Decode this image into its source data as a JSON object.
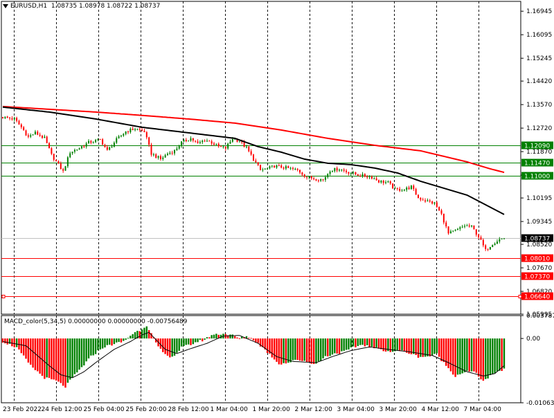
{
  "main_header": {
    "symbol": "EURUSD,H1",
    "open": "1.08735",
    "high": "1.08978",
    "low": "1.08722",
    "close": "1.08737"
  },
  "macd_header": {
    "name": "MACD_color(5,34,5)",
    "v1": "0.00000000",
    "v2": "0.00000000",
    "v3": "-0.00756489"
  },
  "colors": {
    "bull": "#008000",
    "bear": "#ff0000",
    "ma_fast": "#000000",
    "ma_slow": "#ff0000",
    "level_green": "#008000",
    "level_red": "#ff0000",
    "grid": "#000000"
  },
  "chart_data": [
    {
      "type": "candlestick",
      "symbol": "EURUSD",
      "timeframe": "H1",
      "ylim": [
        1.05995,
        1.173
      ],
      "y_ticks": [
        "1.16945",
        "1.16095",
        "1.15245",
        "1.14420",
        "1.13570",
        "1.12720",
        "1.11870",
        "1.11020",
        "1.10195",
        "1.09345",
        "1.08520",
        "1.07670",
        "1.06820",
        "1.05995"
      ],
      "x_ticks": [
        "23 Feb 2022",
        "24 Feb 12:00",
        "25 Feb 04:00",
        "25 Feb 20:00",
        "28 Feb 12:00",
        "1 Mar 04:00",
        "1 Mar 20:00",
        "2 Mar 12:00",
        "3 Mar 04:00",
        "3 Mar 20:00",
        "4 Mar 12:00",
        "7 Mar 04:00"
      ],
      "levels": [
        {
          "label": "1.12090",
          "value": 1.1209,
          "color": "green"
        },
        {
          "label": "1.11470",
          "value": 1.1147,
          "color": "green"
        },
        {
          "label": "1.11000",
          "value": 1.11,
          "color": "green"
        },
        {
          "label": "1.08010",
          "value": 1.0801,
          "color": "red"
        },
        {
          "label": "1.07370",
          "value": 1.0737,
          "color": "red"
        },
        {
          "label": "1.06640",
          "value": 1.0664,
          "color": "red"
        }
      ],
      "current_price": {
        "label": "1.08737",
        "value": 1.08737
      },
      "close_path": [
        [
          0,
          1.1312
        ],
        [
          5,
          1.1305
        ],
        [
          8,
          1.1275
        ],
        [
          11,
          1.124
        ],
        [
          14,
          1.1255
        ],
        [
          18,
          1.1235
        ],
        [
          21,
          1.1175
        ],
        [
          26,
          1.1115
        ],
        [
          29,
          1.1185
        ],
        [
          33,
          1.12
        ],
        [
          37,
          1.122
        ],
        [
          42,
          1.123
        ],
        [
          45,
          1.119
        ],
        [
          49,
          1.123
        ],
        [
          53,
          1.126
        ],
        [
          57,
          1.127
        ],
        [
          61,
          1.126
        ],
        [
          64,
          1.118
        ],
        [
          68,
          1.116
        ],
        [
          71,
          1.118
        ],
        [
          74,
          1.119
        ],
        [
          77,
          1.122
        ],
        [
          81,
          1.1235
        ],
        [
          84,
          1.1215
        ],
        [
          87,
          1.123
        ],
        [
          90,
          1.122
        ],
        [
          93,
          1.1205
        ],
        [
          96,
          1.12
        ],
        [
          99,
          1.1235
        ],
        [
          102,
          1.1225
        ],
        [
          105,
          1.12
        ],
        [
          108,
          1.116
        ],
        [
          111,
          1.112
        ],
        [
          114,
          1.1125
        ],
        [
          117,
          1.1135
        ],
        [
          121,
          1.113
        ],
        [
          124,
          1.1125
        ],
        [
          127,
          1.112
        ],
        [
          131,
          1.1095
        ],
        [
          134,
          1.109
        ],
        [
          138,
          1.1085
        ],
        [
          141,
          1.112
        ],
        [
          145,
          1.1125
        ],
        [
          148,
          1.1115
        ],
        [
          152,
          1.1105
        ],
        [
          155,
          1.11
        ],
        [
          159,
          1.1095
        ],
        [
          162,
          1.108
        ],
        [
          166,
          1.1075
        ],
        [
          169,
          1.105
        ],
        [
          173,
          1.105
        ],
        [
          176,
          1.106
        ],
        [
          179,
          1.102
        ],
        [
          182,
          1.101
        ],
        [
          186,
          1.1
        ],
        [
          189,
          1.096
        ],
        [
          192,
          1.089
        ],
        [
          196,
          1.0905
        ],
        [
          199,
          1.092
        ],
        [
          202,
          1.0915
        ],
        [
          205,
          1.088
        ],
        [
          208,
          1.083
        ],
        [
          211,
          1.0855
        ],
        [
          214,
          1.087
        ],
        [
          216,
          1.0874
        ]
      ],
      "candle_count": 217,
      "ma_fast": [
        [
          0,
          1.1348
        ],
        [
          20,
          1.133
        ],
        [
          40,
          1.1305
        ],
        [
          60,
          1.1275
        ],
        [
          80,
          1.1255
        ],
        [
          100,
          1.1235
        ],
        [
          110,
          1.1205
        ],
        [
          120,
          1.1185
        ],
        [
          130,
          1.116
        ],
        [
          140,
          1.1145
        ],
        [
          150,
          1.114
        ],
        [
          160,
          1.1128
        ],
        [
          170,
          1.111
        ],
        [
          180,
          1.108
        ],
        [
          190,
          1.1055
        ],
        [
          200,
          1.103
        ],
        [
          208,
          1.0995
        ],
        [
          216,
          1.096
        ]
      ],
      "ma_slow": [
        [
          0,
          1.135
        ],
        [
          20,
          1.134
        ],
        [
          40,
          1.133
        ],
        [
          60,
          1.1318
        ],
        [
          80,
          1.1305
        ],
        [
          100,
          1.129
        ],
        [
          120,
          1.1265
        ],
        [
          140,
          1.1235
        ],
        [
          160,
          1.121
        ],
        [
          180,
          1.119
        ],
        [
          190,
          1.117
        ],
        [
          200,
          1.115
        ],
        [
          210,
          1.1125
        ],
        [
          216,
          1.1112
        ]
      ]
    },
    {
      "type": "histogram",
      "title": "MACD_color(5,34,5)",
      "ylim": [
        -0.010635,
        0.003787
      ],
      "y_ticks": [
        "0.0037876",
        "0.00",
        "-0.010635"
      ],
      "macd_path": [
        [
          0,
          -0.0005
        ],
        [
          6,
          -0.0015
        ],
        [
          12,
          -0.0045
        ],
        [
          18,
          -0.0065
        ],
        [
          23,
          -0.007
        ],
        [
          27,
          -0.008
        ],
        [
          30,
          -0.0065
        ],
        [
          34,
          -0.0048
        ],
        [
          38,
          -0.003
        ],
        [
          43,
          -0.0015
        ],
        [
          47,
          -0.001
        ],
        [
          52,
          -0.0005
        ],
        [
          56,
          0.0008
        ],
        [
          60,
          0.0016
        ],
        [
          62,
          0.0022
        ],
        [
          64,
          0.0008
        ],
        [
          67,
          -0.0015
        ],
        [
          71,
          -0.003
        ],
        [
          74,
          -0.0028
        ],
        [
          77,
          -0.0015
        ],
        [
          81,
          -0.001
        ],
        [
          84,
          -0.0005
        ],
        [
          87,
          -0.0002
        ],
        [
          90,
          0.0006
        ],
        [
          95,
          0.0008
        ],
        [
          99,
          0.0005
        ],
        [
          102,
          0.0
        ],
        [
          105,
          0.0004
        ],
        [
          108,
          -0.0002
        ],
        [
          112,
          -0.0015
        ],
        [
          116,
          -0.003
        ],
        [
          119,
          -0.0042
        ],
        [
          123,
          -0.004
        ],
        [
          127,
          -0.0035
        ],
        [
          131,
          -0.0038
        ],
        [
          135,
          -0.0042
        ],
        [
          139,
          -0.003
        ],
        [
          143,
          -0.0025
        ],
        [
          147,
          -0.0022
        ],
        [
          151,
          -0.0015
        ],
        [
          155,
          -0.001
        ],
        [
          159,
          -0.0015
        ],
        [
          163,
          -0.0018
        ],
        [
          167,
          -0.0022
        ],
        [
          171,
          -0.002
        ],
        [
          175,
          -0.0024
        ],
        [
          179,
          -0.003
        ],
        [
          183,
          -0.003
        ],
        [
          187,
          -0.0026
        ],
        [
          191,
          -0.0045
        ],
        [
          195,
          -0.0062
        ],
        [
          199,
          -0.0055
        ],
        [
          203,
          -0.0055
        ],
        [
          207,
          -0.007
        ],
        [
          211,
          -0.006
        ],
        [
          216,
          -0.005
        ]
      ],
      "signal_path": [
        [
          0,
          -0.0005
        ],
        [
          10,
          -0.0012
        ],
        [
          20,
          -0.0045
        ],
        [
          25,
          -0.006
        ],
        [
          30,
          -0.0065
        ],
        [
          35,
          -0.0055
        ],
        [
          40,
          -0.004
        ],
        [
          48,
          -0.0018
        ],
        [
          55,
          -0.0005
        ],
        [
          60,
          0.0006
        ],
        [
          63,
          0.001
        ],
        [
          66,
          -0.0002
        ],
        [
          70,
          -0.0018
        ],
        [
          75,
          -0.0025
        ],
        [
          80,
          -0.0018
        ],
        [
          88,
          -0.0008
        ],
        [
          95,
          0.0004
        ],
        [
          102,
          0.0005
        ],
        [
          110,
          -0.0008
        ],
        [
          118,
          -0.003
        ],
        [
          125,
          -0.0038
        ],
        [
          135,
          -0.004
        ],
        [
          142,
          -0.003
        ],
        [
          150,
          -0.002
        ],
        [
          158,
          -0.0014
        ],
        [
          166,
          -0.0018
        ],
        [
          175,
          -0.0022
        ],
        [
          185,
          -0.0028
        ],
        [
          192,
          -0.004
        ],
        [
          200,
          -0.0055
        ],
        [
          207,
          -0.0062
        ],
        [
          212,
          -0.0058
        ],
        [
          216,
          -0.0045
        ]
      ]
    }
  ]
}
